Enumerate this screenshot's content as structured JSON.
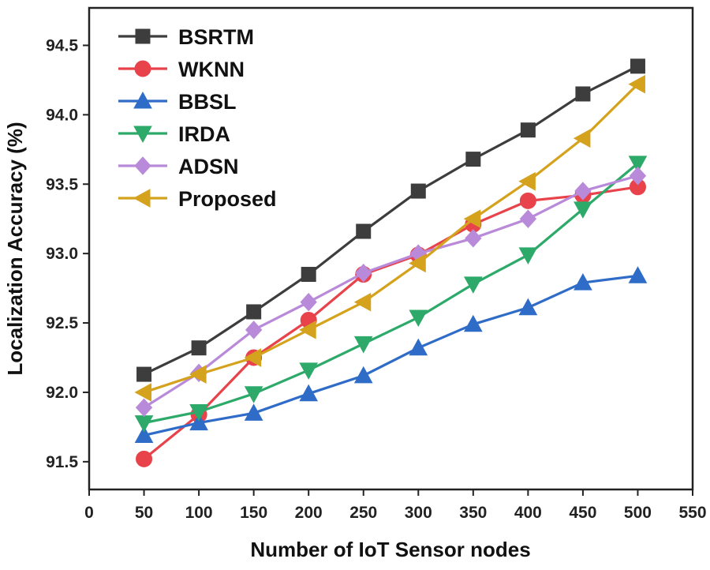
{
  "chart_data": {
    "type": "line",
    "title": "",
    "xlabel": "Number of IoT Sensor nodes",
    "ylabel": "Localization Accuracy (%)",
    "xlim": [
      0,
      550
    ],
    "ylim": [
      91.3,
      94.77
    ],
    "xticks": [
      "0",
      "50",
      "100",
      "150",
      "200",
      "250",
      "300",
      "350",
      "400",
      "450",
      "500",
      "550"
    ],
    "yticks": [
      "91.5",
      "92.0",
      "92.5",
      "93.0",
      "93.5",
      "94.0",
      "94.5"
    ],
    "grid": false,
    "legend_position": "top-left",
    "x": [
      50,
      100,
      150,
      200,
      250,
      300,
      350,
      400,
      450,
      500
    ],
    "series": [
      {
        "name": "BSRTM",
        "marker": "square",
        "color": "#3d3d3d",
        "values": [
          92.13,
          92.32,
          92.58,
          92.85,
          93.16,
          93.45,
          93.68,
          93.89,
          94.15,
          94.35
        ]
      },
      {
        "name": "WKNN",
        "marker": "circle",
        "color": "#e8424a",
        "values": [
          91.52,
          91.84,
          92.25,
          92.52,
          92.85,
          92.99,
          93.21,
          93.38,
          93.42,
          93.48
        ]
      },
      {
        "name": "BBSL",
        "marker": "triangle-up",
        "color": "#2f6cc7",
        "values": [
          91.69,
          91.78,
          91.85,
          91.99,
          92.12,
          92.32,
          92.49,
          92.61,
          92.79,
          92.84
        ]
      },
      {
        "name": "IRDA",
        "marker": "triangle-down",
        "color": "#2daa6a",
        "values": [
          91.78,
          91.86,
          91.99,
          92.16,
          92.35,
          92.54,
          92.78,
          92.99,
          93.32,
          93.65
        ]
      },
      {
        "name": "ADSN",
        "marker": "diamond",
        "color": "#b98ad9",
        "values": [
          91.89,
          92.14,
          92.45,
          92.65,
          92.86,
          93.0,
          93.11,
          93.25,
          93.45,
          93.56
        ]
      },
      {
        "name": "Proposed",
        "marker": "triangle-left",
        "color": "#d4a21c",
        "values": [
          92.0,
          92.13,
          92.25,
          92.45,
          92.65,
          92.93,
          93.25,
          93.52,
          93.83,
          94.22
        ]
      }
    ]
  }
}
